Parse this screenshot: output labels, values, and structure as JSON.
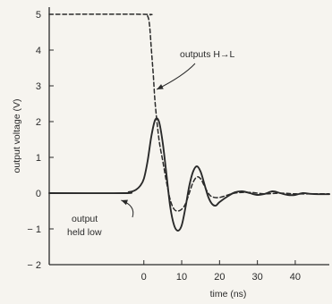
{
  "chart_data": {
    "type": "line",
    "title": "",
    "xlabel": "time (ns)",
    "ylabel": "output voltage (V)",
    "xlim": [
      -25,
      49
    ],
    "ylim": [
      -2,
      5.2
    ],
    "x_ticks": [
      0,
      10,
      20,
      30,
      40
    ],
    "y_ticks": [
      5,
      4,
      3,
      2,
      1,
      0,
      -1,
      -2
    ],
    "grid": false,
    "legend": "none",
    "colors": {
      "ink": "#2a2a2a",
      "background": "#f6f4ef"
    },
    "series": [
      {
        "style": "solid",
        "x": [
          -25,
          -5,
          -4,
          -3,
          -2,
          -1,
          0,
          1,
          2,
          3,
          4,
          5,
          6,
          7,
          8,
          9,
          10,
          11,
          12,
          13,
          14,
          15,
          16,
          17,
          18,
          19,
          20,
          22,
          24,
          26,
          28,
          30,
          32,
          34,
          36,
          38,
          40,
          42,
          44,
          46,
          49
        ],
        "y": [
          0,
          0,
          0.03,
          0.05,
          0.1,
          0.2,
          0.4,
          0.9,
          1.6,
          2.05,
          2.0,
          1.4,
          0.5,
          -0.4,
          -0.9,
          -1.05,
          -0.9,
          -0.4,
          0.2,
          0.6,
          0.75,
          0.6,
          0.25,
          -0.1,
          -0.3,
          -0.35,
          -0.25,
          -0.1,
          0.02,
          0.05,
          0.0,
          -0.05,
          -0.02,
          0.05,
          0.0,
          -0.05,
          -0.05,
          0.0,
          -0.02,
          -0.03,
          -0.03
        ]
      },
      {
        "style": "dashed",
        "x": [
          -25,
          0,
          1,
          1.5,
          2,
          2.5,
          3,
          4,
          5,
          6,
          7,
          8,
          9,
          10,
          11,
          12,
          13,
          14,
          15,
          16,
          17,
          18,
          20,
          24,
          28,
          32,
          36,
          40,
          44,
          49
        ],
        "y": [
          5.0,
          5.0,
          4.95,
          4.7,
          4.0,
          3.3,
          2.5,
          1.5,
          0.9,
          0.3,
          -0.2,
          -0.45,
          -0.5,
          -0.45,
          -0.3,
          0.0,
          0.3,
          0.45,
          0.4,
          0.2,
          0.0,
          -0.1,
          -0.12,
          0.0,
          0.02,
          -0.02,
          0.0,
          -0.02,
          -0.02,
          -0.02
        ]
      }
    ],
    "annotations": {
      "outputs": {
        "text": "outputs H→L",
        "target": [
          2.7,
          2.9
        ]
      },
      "held_line1": "output",
      "held_line2": "held low",
      "held_target": [
        -6,
        -0.2
      ]
    }
  }
}
